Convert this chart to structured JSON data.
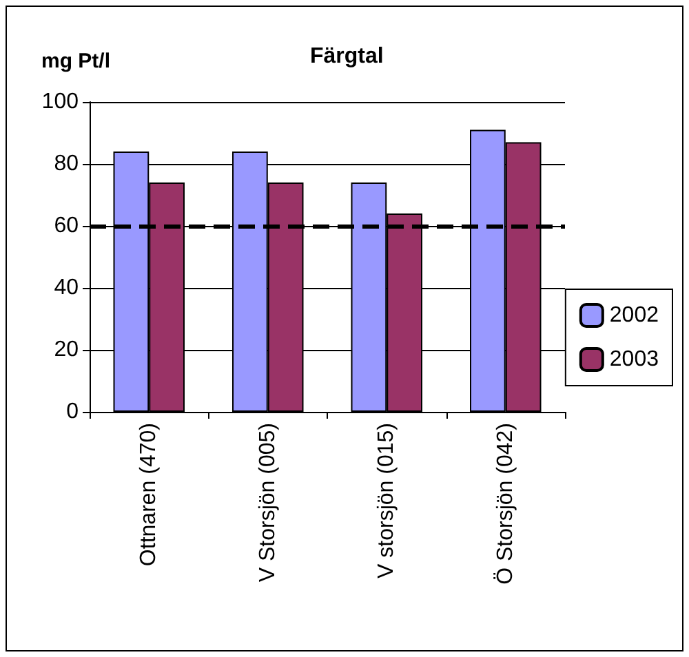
{
  "chart_data": {
    "type": "bar",
    "title": "Färgtal",
    "ylabel": "mg Pt/l",
    "categories": [
      "Ottnaren (470)",
      "V Storsjön (005)",
      "V storsjön (015)",
      "Ö Storsjön (042)"
    ],
    "series": [
      {
        "name": "2002",
        "color": "#9999ff",
        "values": [
          84,
          84,
          74,
          91
        ]
      },
      {
        "name": "2003",
        "color": "#993366",
        "values": [
          74,
          74,
          64,
          87
        ]
      }
    ],
    "ylim": [
      0,
      100
    ],
    "yticks": [
      0,
      20,
      40,
      60,
      80,
      100
    ],
    "grid": "y",
    "legend": "right",
    "ref_lines": [
      {
        "axis": "y",
        "value": 60,
        "color": "#000000",
        "line_style": "dashed"
      }
    ]
  }
}
